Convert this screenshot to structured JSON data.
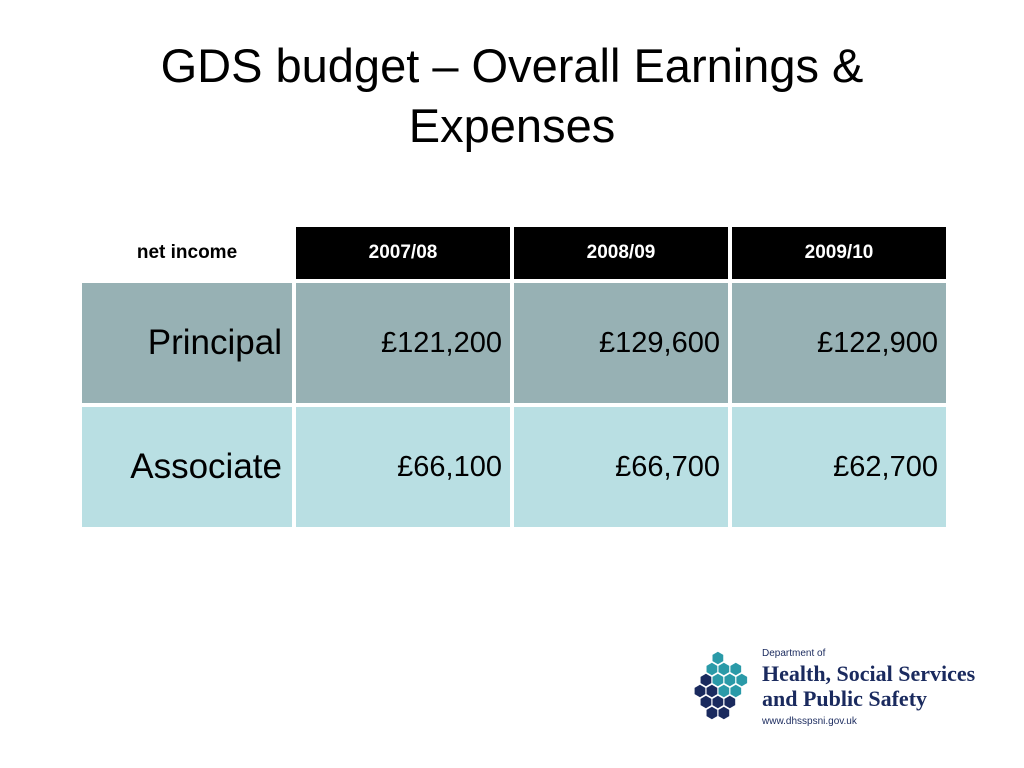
{
  "slide": {
    "title_line1": "GDS budget – Overall Earnings &",
    "title_line2": "Expenses"
  },
  "table": {
    "corner_label": "net income",
    "columns": [
      "2007/08",
      "2008/09",
      "2009/10"
    ],
    "rows": [
      {
        "label": "Principal",
        "values": [
          "£121,200",
          "£129,600",
          "£122,900"
        ]
      },
      {
        "label": "Associate",
        "values": [
          "£66,100",
          "£66,700",
          "£62,700"
        ]
      }
    ]
  },
  "logo": {
    "department": "Department of",
    "name_line1": "Health, Social Services",
    "name_line2": "and Public Safety",
    "url": "www.dhsspsni.gov.uk",
    "colors": {
      "navy": "#1a2a5e",
      "teal": "#2a9aa8"
    }
  },
  "colors": {
    "header_bg": "#000000",
    "principal_bg": "#97b1b4",
    "associate_bg": "#b9dfe3"
  }
}
